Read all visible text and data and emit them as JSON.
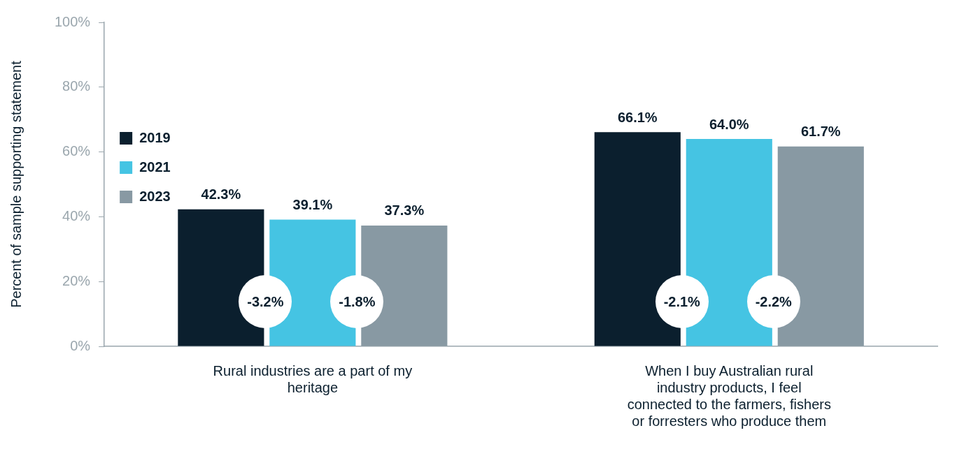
{
  "chart_data": {
    "type": "bar",
    "ylabel": "Percent of sample supporting statement",
    "categories": [
      "Rural industries are a part of my heritage",
      "When I buy Australian rural industry products, I feel connected to the farmers, fishers or forresters who produce them"
    ],
    "series": [
      {
        "name": "2019",
        "color": "#0b1f2e",
        "values": [
          42.3,
          66.1
        ],
        "value_labels": [
          "42.3%",
          "66.1%"
        ]
      },
      {
        "name": "2021",
        "color": "#45c4e3",
        "values": [
          39.1,
          64.0
        ],
        "value_labels": [
          "39.1%",
          "64.0%"
        ]
      },
      {
        "name": "2023",
        "color": "#8899a3",
        "values": [
          37.3,
          61.7
        ],
        "value_labels": [
          "37.3%",
          "61.7%"
        ]
      }
    ],
    "ylim": [
      0,
      100
    ],
    "yticks": [
      {
        "value": 0,
        "label": "0%"
      },
      {
        "value": 20,
        "label": "20%"
      },
      {
        "value": 40,
        "label": "40%"
      },
      {
        "value": 60,
        "label": "60%"
      },
      {
        "value": 80,
        "label": "80%"
      },
      {
        "value": 100,
        "label": "100%"
      }
    ],
    "annotations": [
      "-3.2%",
      "-1.8%",
      "-2.1%",
      "-2.2%"
    ],
    "grid": false,
    "legend": "top"
  }
}
